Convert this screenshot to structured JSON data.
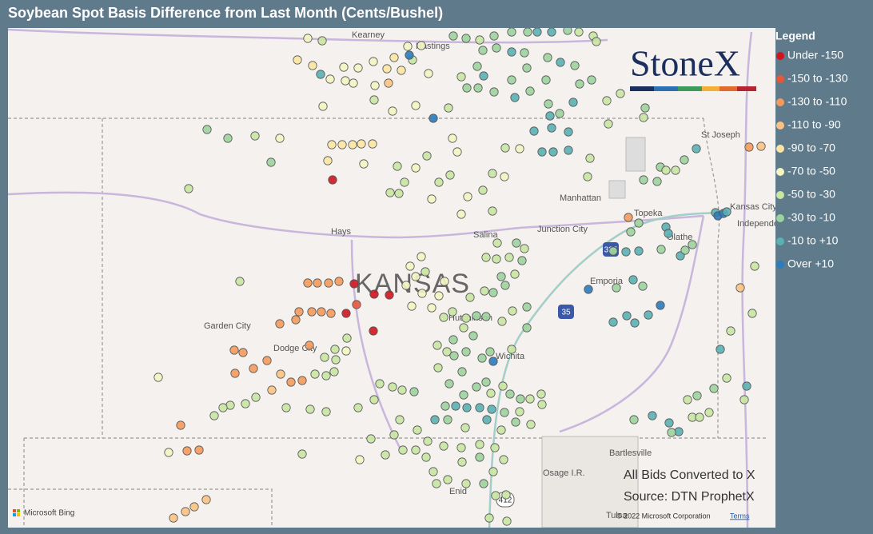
{
  "title": "Soybean Spot Basis Difference from Last Month (Cents/Bushel)",
  "legend": {
    "title": "Legend",
    "items": [
      {
        "label": "Under -150",
        "color": "#d0141f"
      },
      {
        "label": "-150 to -130",
        "color": "#e8573a"
      },
      {
        "label": "-130 to -110",
        "color": "#f49a5c"
      },
      {
        "label": "-110 to -90",
        "color": "#fbc383"
      },
      {
        "label": "-90 to -70",
        "color": "#fde6a3"
      },
      {
        "label": "-70 to -50",
        "color": "#f3f5c2"
      },
      {
        "label": "-50 to -30",
        "color": "#c9e6a3"
      },
      {
        "label": "-30 to -10",
        "color": "#9dd39c"
      },
      {
        "label": "-10 to +10",
        "color": "#5ab0b2"
      },
      {
        "label": "Over +10",
        "color": "#2c7bbb"
      }
    ]
  },
  "logo": "StoneX",
  "places": [
    "Kearney",
    "Hastings",
    "St Joseph",
    "Manhattan",
    "Topeka",
    "Kansas City",
    "Independence",
    "Hays",
    "Salina",
    "Junction City",
    "Olathe",
    "Emporia",
    "Garden City",
    "Dodge City",
    "Hutchinson",
    "Wichita",
    "KANSAS",
    "Bartlesville",
    "Osage I.R.",
    "Enid",
    "Tulsa"
  ],
  "highways": [
    "335",
    "35",
    "412"
  ],
  "notes": [
    "All Bids Converted to X",
    "Source: DTN ProphetX"
  ],
  "footer": {
    "bing": "Microsoft Bing",
    "copyright": "© 2022 Microsoft Corporation",
    "terms": "Terms"
  }
}
